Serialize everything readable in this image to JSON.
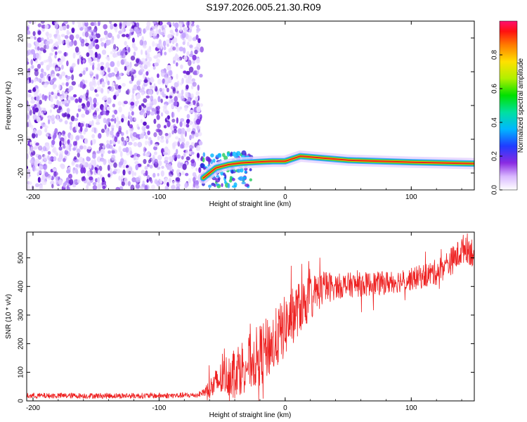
{
  "page": {
    "title": "S197.2026.005.21.30.R09"
  },
  "chart_data": [
    {
      "type": "heatmap",
      "xlabel": "Height of straight line (km)",
      "ylabel": "Frequency (Hz)",
      "xlim": [
        -205,
        150
      ],
      "ylim": [
        -25,
        25
      ],
      "x_ticks": [
        -200,
        -100,
        0,
        100
      ],
      "x_tick_labels": [
        "-200",
        "-100",
        "0",
        "100"
      ],
      "y_ticks": [
        -20,
        -10,
        0,
        10,
        20
      ],
      "y_tick_labels": [
        "-20",
        "-10",
        "0",
        "10",
        "20"
      ],
      "noise_region_x": [
        -205,
        -66
      ],
      "tone_track": [
        {
          "x": -65,
          "y": -21.5
        },
        {
          "x": -55,
          "y": -18.5
        },
        {
          "x": -45,
          "y": -17.5
        },
        {
          "x": -35,
          "y": -17.0
        },
        {
          "x": -25,
          "y": -16.8
        },
        {
          "x": -10,
          "y": -16.5
        },
        {
          "x": 0,
          "y": -16.5
        },
        {
          "x": 12,
          "y": -15.0
        },
        {
          "x": 50,
          "y": -16.2
        },
        {
          "x": 100,
          "y": -16.8
        },
        {
          "x": 150,
          "y": -17.2
        }
      ],
      "colorbar": {
        "label": "Normalized spectral amplitude",
        "ticks": [
          0.0,
          0.2,
          0.4,
          0.6,
          0.8
        ],
        "tick_labels": [
          "0.0",
          "0.2",
          "0.4",
          "0.6",
          "0.8"
        ],
        "range": [
          0,
          1
        ]
      },
      "colors": {
        "noise": "#6a1fd6",
        "track_core": "#e8241c",
        "track_mid": "#f5d000",
        "track_outer": "#22c95a",
        "track_edge": "#2aa0ff"
      }
    },
    {
      "type": "line",
      "xlabel": "Height of straight line (km)",
      "ylabel": "SNR (10 * v/v)",
      "xlim": [
        -205,
        150
      ],
      "ylim": [
        0,
        590
      ],
      "x_ticks": [
        -200,
        -100,
        0,
        100
      ],
      "x_tick_labels": [
        "-200",
        "-100",
        "0",
        "100"
      ],
      "y_ticks": [
        0,
        100,
        200,
        300,
        400,
        500
      ],
      "y_tick_labels": [
        "0",
        "100",
        "200",
        "300",
        "400",
        "500"
      ],
      "series": [
        {
          "color": "#ee2222",
          "points": [
            {
              "x": -205,
              "y": 18
            },
            {
              "x": -150,
              "y": 18
            },
            {
              "x": -100,
              "y": 18
            },
            {
              "x": -70,
              "y": 20
            },
            {
              "x": -60,
              "y": 40
            },
            {
              "x": -50,
              "y": 80
            },
            {
              "x": -40,
              "y": 110
            },
            {
              "x": -30,
              "y": 130
            },
            {
              "x": -20,
              "y": 160
            },
            {
              "x": -10,
              "y": 200
            },
            {
              "x": 0,
              "y": 260
            },
            {
              "x": 10,
              "y": 320
            },
            {
              "x": 20,
              "y": 360
            },
            {
              "x": 30,
              "y": 395
            },
            {
              "x": 50,
              "y": 405
            },
            {
              "x": 75,
              "y": 410
            },
            {
              "x": 100,
              "y": 425
            },
            {
              "x": 120,
              "y": 450
            },
            {
              "x": 135,
              "y": 500
            },
            {
              "x": 143,
              "y": 540
            },
            {
              "x": 150,
              "y": 515
            }
          ],
          "noise_amplitude": [
            {
              "x": -205,
              "a": 10
            },
            {
              "x": -66,
              "a": 10
            },
            {
              "x": -60,
              "a": 40
            },
            {
              "x": -40,
              "a": 90
            },
            {
              "x": -20,
              "a": 110
            },
            {
              "x": 0,
              "a": 110
            },
            {
              "x": 20,
              "a": 80
            },
            {
              "x": 40,
              "a": 45
            },
            {
              "x": 100,
              "a": 40
            },
            {
              "x": 150,
              "a": 55
            }
          ]
        }
      ]
    }
  ]
}
